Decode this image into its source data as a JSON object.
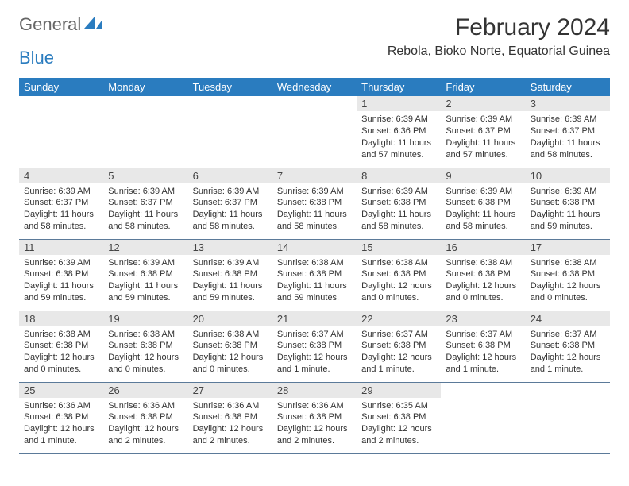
{
  "logo": {
    "text1": "General",
    "text2": "Blue"
  },
  "header": {
    "title": "February 2024",
    "subtitle": "Rebola, Bioko Norte, Equatorial Guinea"
  },
  "colors": {
    "header_bg": "#2a7cbf",
    "header_text": "#ffffff",
    "daynum_bg": "#e8e8e8",
    "row_border": "#5b7a99",
    "background": "#ffffff",
    "text": "#333333"
  },
  "weekdays": [
    "Sunday",
    "Monday",
    "Tuesday",
    "Wednesday",
    "Thursday",
    "Friday",
    "Saturday"
  ],
  "cells": [
    {
      "n": "",
      "sr": "",
      "ss": "",
      "dl": ""
    },
    {
      "n": "",
      "sr": "",
      "ss": "",
      "dl": ""
    },
    {
      "n": "",
      "sr": "",
      "ss": "",
      "dl": ""
    },
    {
      "n": "",
      "sr": "",
      "ss": "",
      "dl": ""
    },
    {
      "n": "1",
      "sr": "Sunrise: 6:39 AM",
      "ss": "Sunset: 6:36 PM",
      "dl": "Daylight: 11 hours and 57 minutes."
    },
    {
      "n": "2",
      "sr": "Sunrise: 6:39 AM",
      "ss": "Sunset: 6:37 PM",
      "dl": "Daylight: 11 hours and 57 minutes."
    },
    {
      "n": "3",
      "sr": "Sunrise: 6:39 AM",
      "ss": "Sunset: 6:37 PM",
      "dl": "Daylight: 11 hours and 58 minutes."
    },
    {
      "n": "4",
      "sr": "Sunrise: 6:39 AM",
      "ss": "Sunset: 6:37 PM",
      "dl": "Daylight: 11 hours and 58 minutes."
    },
    {
      "n": "5",
      "sr": "Sunrise: 6:39 AM",
      "ss": "Sunset: 6:37 PM",
      "dl": "Daylight: 11 hours and 58 minutes."
    },
    {
      "n": "6",
      "sr": "Sunrise: 6:39 AM",
      "ss": "Sunset: 6:37 PM",
      "dl": "Daylight: 11 hours and 58 minutes."
    },
    {
      "n": "7",
      "sr": "Sunrise: 6:39 AM",
      "ss": "Sunset: 6:38 PM",
      "dl": "Daylight: 11 hours and 58 minutes."
    },
    {
      "n": "8",
      "sr": "Sunrise: 6:39 AM",
      "ss": "Sunset: 6:38 PM",
      "dl": "Daylight: 11 hours and 58 minutes."
    },
    {
      "n": "9",
      "sr": "Sunrise: 6:39 AM",
      "ss": "Sunset: 6:38 PM",
      "dl": "Daylight: 11 hours and 58 minutes."
    },
    {
      "n": "10",
      "sr": "Sunrise: 6:39 AM",
      "ss": "Sunset: 6:38 PM",
      "dl": "Daylight: 11 hours and 59 minutes."
    },
    {
      "n": "11",
      "sr": "Sunrise: 6:39 AM",
      "ss": "Sunset: 6:38 PM",
      "dl": "Daylight: 11 hours and 59 minutes."
    },
    {
      "n": "12",
      "sr": "Sunrise: 6:39 AM",
      "ss": "Sunset: 6:38 PM",
      "dl": "Daylight: 11 hours and 59 minutes."
    },
    {
      "n": "13",
      "sr": "Sunrise: 6:39 AM",
      "ss": "Sunset: 6:38 PM",
      "dl": "Daylight: 11 hours and 59 minutes."
    },
    {
      "n": "14",
      "sr": "Sunrise: 6:38 AM",
      "ss": "Sunset: 6:38 PM",
      "dl": "Daylight: 11 hours and 59 minutes."
    },
    {
      "n": "15",
      "sr": "Sunrise: 6:38 AM",
      "ss": "Sunset: 6:38 PM",
      "dl": "Daylight: 12 hours and 0 minutes."
    },
    {
      "n": "16",
      "sr": "Sunrise: 6:38 AM",
      "ss": "Sunset: 6:38 PM",
      "dl": "Daylight: 12 hours and 0 minutes."
    },
    {
      "n": "17",
      "sr": "Sunrise: 6:38 AM",
      "ss": "Sunset: 6:38 PM",
      "dl": "Daylight: 12 hours and 0 minutes."
    },
    {
      "n": "18",
      "sr": "Sunrise: 6:38 AM",
      "ss": "Sunset: 6:38 PM",
      "dl": "Daylight: 12 hours and 0 minutes."
    },
    {
      "n": "19",
      "sr": "Sunrise: 6:38 AM",
      "ss": "Sunset: 6:38 PM",
      "dl": "Daylight: 12 hours and 0 minutes."
    },
    {
      "n": "20",
      "sr": "Sunrise: 6:38 AM",
      "ss": "Sunset: 6:38 PM",
      "dl": "Daylight: 12 hours and 0 minutes."
    },
    {
      "n": "21",
      "sr": "Sunrise: 6:37 AM",
      "ss": "Sunset: 6:38 PM",
      "dl": "Daylight: 12 hours and 1 minute."
    },
    {
      "n": "22",
      "sr": "Sunrise: 6:37 AM",
      "ss": "Sunset: 6:38 PM",
      "dl": "Daylight: 12 hours and 1 minute."
    },
    {
      "n": "23",
      "sr": "Sunrise: 6:37 AM",
      "ss": "Sunset: 6:38 PM",
      "dl": "Daylight: 12 hours and 1 minute."
    },
    {
      "n": "24",
      "sr": "Sunrise: 6:37 AM",
      "ss": "Sunset: 6:38 PM",
      "dl": "Daylight: 12 hours and 1 minute."
    },
    {
      "n": "25",
      "sr": "Sunrise: 6:36 AM",
      "ss": "Sunset: 6:38 PM",
      "dl": "Daylight: 12 hours and 1 minute."
    },
    {
      "n": "26",
      "sr": "Sunrise: 6:36 AM",
      "ss": "Sunset: 6:38 PM",
      "dl": "Daylight: 12 hours and 2 minutes."
    },
    {
      "n": "27",
      "sr": "Sunrise: 6:36 AM",
      "ss": "Sunset: 6:38 PM",
      "dl": "Daylight: 12 hours and 2 minutes."
    },
    {
      "n": "28",
      "sr": "Sunrise: 6:36 AM",
      "ss": "Sunset: 6:38 PM",
      "dl": "Daylight: 12 hours and 2 minutes."
    },
    {
      "n": "29",
      "sr": "Sunrise: 6:35 AM",
      "ss": "Sunset: 6:38 PM",
      "dl": "Daylight: 12 hours and 2 minutes."
    },
    {
      "n": "",
      "sr": "",
      "ss": "",
      "dl": ""
    },
    {
      "n": "",
      "sr": "",
      "ss": "",
      "dl": ""
    }
  ]
}
